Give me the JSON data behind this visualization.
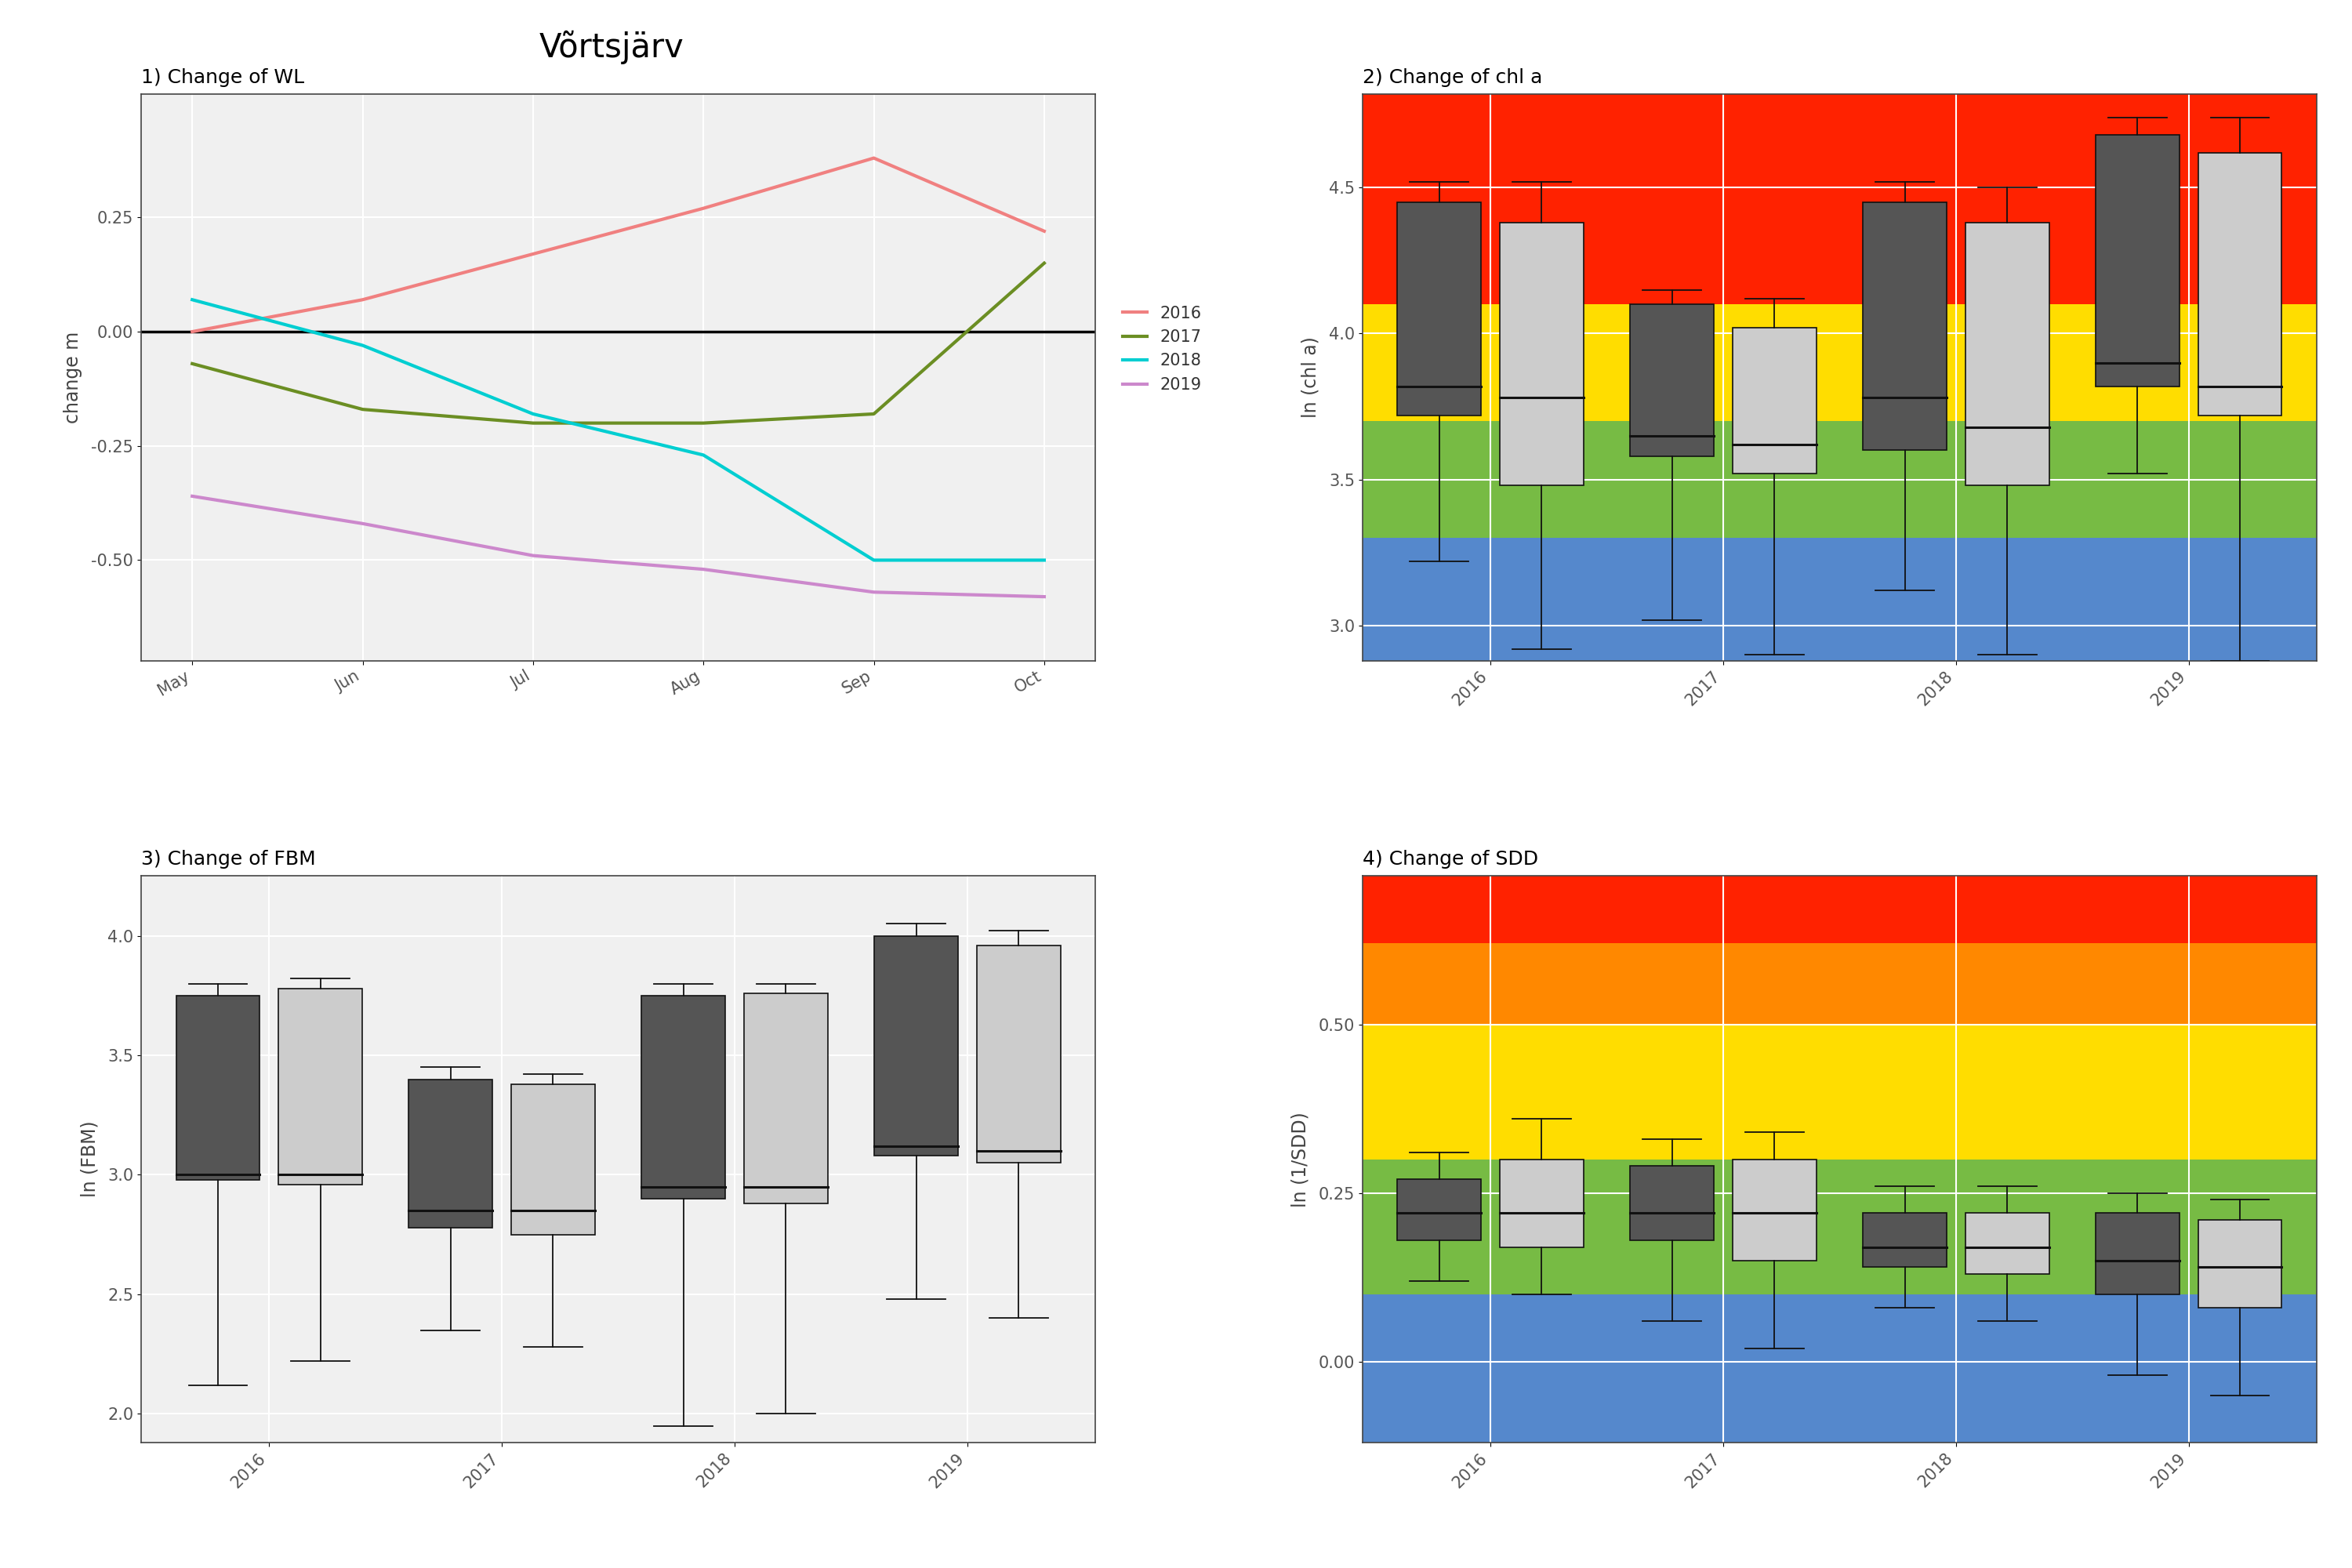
{
  "title": "Võrtsjärv",
  "bg_color": "#ffffff",
  "panel_bg": "#f0f0f0",
  "wl_title": "1) Change of WL",
  "wl_ylabel": "change m",
  "wl_months": [
    "May",
    "Jun",
    "Jul",
    "Aug",
    "Sep",
    "Oct"
  ],
  "wl_2016": [
    0.0,
    0.07,
    0.17,
    0.27,
    0.38,
    0.22
  ],
  "wl_2017": [
    -0.07,
    -0.17,
    -0.2,
    -0.2,
    -0.18,
    0.15
  ],
  "wl_2018": [
    0.07,
    -0.03,
    -0.18,
    -0.27,
    -0.5,
    -0.5
  ],
  "wl_2019": [
    -0.36,
    -0.42,
    -0.49,
    -0.52,
    -0.57,
    -0.58
  ],
  "wl_colors": [
    "#f08080",
    "#6b8e23",
    "#00ced1",
    "#cc88cc"
  ],
  "wl_labels": [
    "2016",
    "2017",
    "2018",
    "2019"
  ],
  "wl_ylim": [
    -0.72,
    0.52
  ],
  "wl_yticks": [
    -0.5,
    -0.25,
    0.0,
    0.25
  ],
  "chla_title": "2) Change of chl a",
  "chla_ylabel": "ln (chl a)",
  "chla_ylim": [
    2.88,
    4.82
  ],
  "chla_yticks": [
    3.0,
    3.5,
    4.0,
    4.5
  ],
  "chla_band_colors": [
    "#5588cc",
    "#77bb44",
    "#ffdd00",
    "#ff2200"
  ],
  "chla_band_limits": [
    2.88,
    3.3,
    3.7,
    4.1,
    4.82
  ],
  "chla_years": [
    "2016",
    "2017",
    "2018",
    "2019"
  ],
  "chla_dark_boxes": {
    "2016": {
      "q1": 3.72,
      "median": 3.82,
      "q3": 4.45,
      "whislo": 3.22,
      "whishi": 4.52
    },
    "2017": {
      "q1": 3.58,
      "median": 3.65,
      "q3": 4.1,
      "whislo": 3.02,
      "whishi": 4.15
    },
    "2018": {
      "q1": 3.6,
      "median": 3.78,
      "q3": 4.45,
      "whislo": 3.12,
      "whishi": 4.52
    },
    "2019": {
      "q1": 3.82,
      "median": 3.9,
      "q3": 4.68,
      "whislo": 3.52,
      "whishi": 4.74
    }
  },
  "chla_light_boxes": {
    "2016": {
      "q1": 3.48,
      "median": 3.78,
      "q3": 4.38,
      "whislo": 2.92,
      "whishi": 4.52
    },
    "2017": {
      "q1": 3.52,
      "median": 3.62,
      "q3": 4.02,
      "whislo": 2.9,
      "whishi": 4.12
    },
    "2018": {
      "q1": 3.48,
      "median": 3.68,
      "q3": 4.38,
      "whislo": 2.9,
      "whishi": 4.5
    },
    "2019": {
      "q1": 3.72,
      "median": 3.82,
      "q3": 4.62,
      "whislo": 2.88,
      "whishi": 4.74
    }
  },
  "fbm_title": "3) Change of FBM",
  "fbm_ylabel": "ln (FBM)",
  "fbm_ylim": [
    1.88,
    4.25
  ],
  "fbm_yticks": [
    2.0,
    2.5,
    3.0,
    3.5,
    4.0
  ],
  "fbm_years": [
    "2016",
    "2017",
    "2018",
    "2019"
  ],
  "fbm_dark_boxes": {
    "2016": {
      "q1": 2.98,
      "median": 3.0,
      "q3": 3.75,
      "whislo": 2.12,
      "whishi": 3.8
    },
    "2017": {
      "q1": 2.78,
      "median": 2.85,
      "q3": 3.4,
      "whislo": 2.35,
      "whishi": 3.45
    },
    "2018": {
      "q1": 2.9,
      "median": 2.95,
      "q3": 3.75,
      "whislo": 1.95,
      "whishi": 3.8
    },
    "2019": {
      "q1": 3.08,
      "median": 3.12,
      "q3": 4.0,
      "whislo": 2.48,
      "whishi": 4.05
    }
  },
  "fbm_light_boxes": {
    "2016": {
      "q1": 2.96,
      "median": 3.0,
      "q3": 3.78,
      "whislo": 2.22,
      "whishi": 3.82
    },
    "2017": {
      "q1": 2.75,
      "median": 2.85,
      "q3": 3.38,
      "whislo": 2.28,
      "whishi": 3.42
    },
    "2018": {
      "q1": 2.88,
      "median": 2.95,
      "q3": 3.76,
      "whislo": 2.0,
      "whishi": 3.8
    },
    "2019": {
      "q1": 3.05,
      "median": 3.1,
      "q3": 3.96,
      "whislo": 2.4,
      "whishi": 4.02
    }
  },
  "sdd_title": "4) Change of SDD",
  "sdd_ylabel": "ln (1/SDD)",
  "sdd_ylim": [
    -0.12,
    0.72
  ],
  "sdd_yticks": [
    0.0,
    0.25,
    0.5
  ],
  "sdd_band_colors": [
    "#5588cc",
    "#77bb44",
    "#ffdd00",
    "#ff8800",
    "#ff2200"
  ],
  "sdd_band_limits": [
    -0.12,
    0.1,
    0.3,
    0.5,
    0.62,
    0.72
  ],
  "sdd_years": [
    "2016",
    "2017",
    "2018",
    "2019"
  ],
  "sdd_dark_boxes": {
    "2016": {
      "q1": 0.18,
      "median": 0.22,
      "q3": 0.27,
      "whislo": 0.12,
      "whishi": 0.31
    },
    "2017": {
      "q1": 0.18,
      "median": 0.22,
      "q3": 0.29,
      "whislo": 0.06,
      "whishi": 0.33
    },
    "2018": {
      "q1": 0.14,
      "median": 0.17,
      "q3": 0.22,
      "whislo": 0.08,
      "whishi": 0.26
    },
    "2019": {
      "q1": 0.1,
      "median": 0.15,
      "q3": 0.22,
      "whislo": -0.02,
      "whishi": 0.25
    }
  },
  "sdd_light_boxes": {
    "2016": {
      "q1": 0.17,
      "median": 0.22,
      "q3": 0.3,
      "whislo": 0.1,
      "whishi": 0.36
    },
    "2017": {
      "q1": 0.15,
      "median": 0.22,
      "q3": 0.3,
      "whislo": 0.02,
      "whishi": 0.34
    },
    "2018": {
      "q1": 0.13,
      "median": 0.17,
      "q3": 0.22,
      "whislo": 0.06,
      "whishi": 0.26
    },
    "2019": {
      "q1": 0.08,
      "median": 0.14,
      "q3": 0.21,
      "whislo": -0.05,
      "whishi": 0.24
    }
  }
}
